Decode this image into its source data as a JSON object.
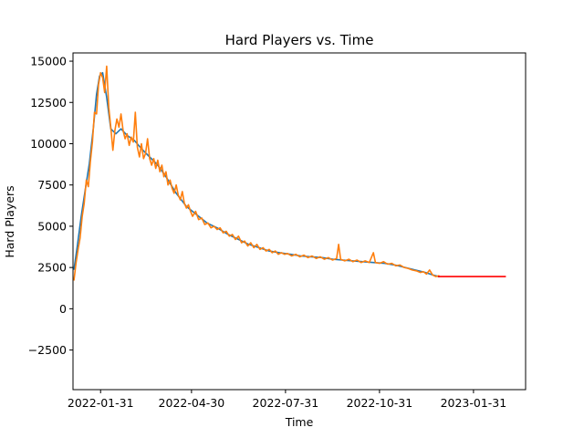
{
  "chart_data": {
    "type": "line",
    "title": "Hard Players vs. Time",
    "xlabel": "Time",
    "ylabel": "Hard Players",
    "x_axis_type": "date",
    "xlim": [
      "2022-01-04",
      "2023-03-23"
    ],
    "ylim": [
      -4900,
      15500
    ],
    "x_ticks": [
      "2022-01-31",
      "2022-04-30",
      "2022-07-31",
      "2022-10-31",
      "2023-01-31"
    ],
    "y_ticks": [
      -2500,
      0,
      2500,
      5000,
      7500,
      10000,
      12500,
      15000
    ],
    "y_tick_labels": [
      "−2500",
      "0",
      "2500",
      "5000",
      "7500",
      "10000",
      "12500",
      "15000"
    ],
    "grid": false,
    "legend": "none",
    "series": [
      {
        "color": "#1f77b4",
        "points": [
          [
            "2022-01-05",
            2400
          ],
          [
            "2022-01-08",
            3700
          ],
          [
            "2022-01-12",
            5600
          ],
          [
            "2022-01-16",
            7200
          ],
          [
            "2022-01-20",
            8800
          ],
          [
            "2022-01-24",
            11000
          ],
          [
            "2022-01-27",
            13000
          ],
          [
            "2022-01-30",
            14100
          ],
          [
            "2022-02-02",
            14300
          ],
          [
            "2022-02-06",
            12800
          ],
          [
            "2022-02-10",
            10900
          ],
          [
            "2022-02-15",
            10600
          ],
          [
            "2022-02-20",
            10900
          ],
          [
            "2022-02-26",
            10500
          ],
          [
            "2022-03-05",
            10200
          ],
          [
            "2022-03-12",
            9700
          ],
          [
            "2022-03-20",
            9200
          ],
          [
            "2022-03-28",
            8700
          ],
          [
            "2022-04-05",
            8000
          ],
          [
            "2022-04-15",
            7000
          ],
          [
            "2022-04-25",
            6200
          ],
          [
            "2022-05-05",
            5700
          ],
          [
            "2022-05-15",
            5200
          ],
          [
            "2022-05-25",
            4900
          ],
          [
            "2022-06-05",
            4500
          ],
          [
            "2022-06-15",
            4200
          ],
          [
            "2022-06-25",
            3900
          ],
          [
            "2022-07-05",
            3700
          ],
          [
            "2022-07-15",
            3500
          ],
          [
            "2022-07-25",
            3400
          ],
          [
            "2022-08-05",
            3300
          ],
          [
            "2022-08-15",
            3200
          ],
          [
            "2022-08-25",
            3150
          ],
          [
            "2022-09-05",
            3100
          ],
          [
            "2022-09-15",
            3000
          ],
          [
            "2022-09-25",
            2950
          ],
          [
            "2022-10-05",
            2900
          ],
          [
            "2022-10-15",
            2850
          ],
          [
            "2022-10-25",
            2800
          ],
          [
            "2022-11-05",
            2750
          ],
          [
            "2022-11-15",
            2650
          ],
          [
            "2022-11-25",
            2500
          ],
          [
            "2022-12-05",
            2350
          ],
          [
            "2022-12-15",
            2200
          ],
          [
            "2022-12-22",
            2050
          ],
          [
            "2022-12-28",
            1950
          ]
        ]
      },
      {
        "color": "#ff7f0e",
        "points": [
          [
            "2022-01-05",
            1750
          ],
          [
            "2022-01-07",
            2800
          ],
          [
            "2022-01-09",
            3600
          ],
          [
            "2022-01-11",
            4300
          ],
          [
            "2022-01-13",
            5600
          ],
          [
            "2022-01-15",
            6400
          ],
          [
            "2022-01-17",
            7800
          ],
          [
            "2022-01-19",
            7400
          ],
          [
            "2022-01-21",
            8900
          ],
          [
            "2022-01-23",
            10100
          ],
          [
            "2022-01-25",
            11900
          ],
          [
            "2022-01-27",
            11800
          ],
          [
            "2022-01-29",
            13600
          ],
          [
            "2022-01-31",
            14300
          ],
          [
            "2022-02-02",
            14000
          ],
          [
            "2022-02-04",
            13100
          ],
          [
            "2022-02-06",
            14700
          ],
          [
            "2022-02-08",
            12200
          ],
          [
            "2022-02-10",
            11000
          ],
          [
            "2022-02-12",
            9600
          ],
          [
            "2022-02-14",
            10800
          ],
          [
            "2022-02-16",
            11500
          ],
          [
            "2022-02-18",
            11000
          ],
          [
            "2022-02-20",
            11800
          ],
          [
            "2022-02-22",
            10800
          ],
          [
            "2022-02-24",
            10300
          ],
          [
            "2022-02-26",
            10600
          ],
          [
            "2022-02-28",
            9900
          ],
          [
            "2022-03-02",
            10400
          ],
          [
            "2022-03-04",
            10100
          ],
          [
            "2022-03-06",
            11900
          ],
          [
            "2022-03-08",
            9800
          ],
          [
            "2022-03-10",
            9200
          ],
          [
            "2022-03-12",
            10000
          ],
          [
            "2022-03-14",
            9100
          ],
          [
            "2022-03-16",
            9400
          ],
          [
            "2022-03-18",
            10300
          ],
          [
            "2022-03-20",
            9100
          ],
          [
            "2022-03-22",
            8700
          ],
          [
            "2022-03-24",
            9100
          ],
          [
            "2022-03-26",
            8500
          ],
          [
            "2022-03-28",
            9000
          ],
          [
            "2022-03-30",
            8300
          ],
          [
            "2022-04-01",
            8700
          ],
          [
            "2022-04-03",
            8000
          ],
          [
            "2022-04-05",
            8300
          ],
          [
            "2022-04-07",
            7500
          ],
          [
            "2022-04-09",
            7800
          ],
          [
            "2022-04-11",
            7300
          ],
          [
            "2022-04-13",
            7000
          ],
          [
            "2022-04-15",
            7500
          ],
          [
            "2022-04-17",
            6900
          ],
          [
            "2022-04-19",
            6600
          ],
          [
            "2022-04-21",
            7100
          ],
          [
            "2022-04-23",
            6400
          ],
          [
            "2022-04-25",
            6100
          ],
          [
            "2022-04-27",
            6300
          ],
          [
            "2022-04-29",
            5900
          ],
          [
            "2022-05-01",
            5600
          ],
          [
            "2022-05-04",
            5900
          ],
          [
            "2022-05-07",
            5400
          ],
          [
            "2022-05-10",
            5500
          ],
          [
            "2022-05-13",
            5100
          ],
          [
            "2022-05-16",
            5200
          ],
          [
            "2022-05-19",
            4900
          ],
          [
            "2022-05-22",
            5000
          ],
          [
            "2022-05-25",
            4800
          ],
          [
            "2022-05-28",
            4900
          ],
          [
            "2022-05-31",
            4600
          ],
          [
            "2022-06-03",
            4700
          ],
          [
            "2022-06-06",
            4400
          ],
          [
            "2022-06-09",
            4500
          ],
          [
            "2022-06-12",
            4200
          ],
          [
            "2022-06-15",
            4400
          ],
          [
            "2022-06-18",
            4000
          ],
          [
            "2022-06-21",
            4100
          ],
          [
            "2022-06-24",
            3800
          ],
          [
            "2022-06-27",
            4000
          ],
          [
            "2022-06-30",
            3700
          ],
          [
            "2022-07-03",
            3900
          ],
          [
            "2022-07-06",
            3600
          ],
          [
            "2022-07-09",
            3700
          ],
          [
            "2022-07-12",
            3500
          ],
          [
            "2022-07-15",
            3600
          ],
          [
            "2022-07-18",
            3400
          ],
          [
            "2022-07-21",
            3500
          ],
          [
            "2022-07-24",
            3300
          ],
          [
            "2022-07-27",
            3400
          ],
          [
            "2022-07-30",
            3300
          ],
          [
            "2022-08-02",
            3350
          ],
          [
            "2022-08-06",
            3200
          ],
          [
            "2022-08-10",
            3300
          ],
          [
            "2022-08-14",
            3150
          ],
          [
            "2022-08-18",
            3250
          ],
          [
            "2022-08-22",
            3100
          ],
          [
            "2022-08-26",
            3200
          ],
          [
            "2022-08-30",
            3050
          ],
          [
            "2022-09-03",
            3150
          ],
          [
            "2022-09-07",
            3000
          ],
          [
            "2022-09-11",
            3100
          ],
          [
            "2022-09-15",
            2950
          ],
          [
            "2022-09-19",
            3050
          ],
          [
            "2022-09-21",
            3900
          ],
          [
            "2022-09-23",
            3000
          ],
          [
            "2022-09-27",
            2900
          ],
          [
            "2022-10-01",
            3000
          ],
          [
            "2022-10-05",
            2850
          ],
          [
            "2022-10-09",
            2950
          ],
          [
            "2022-10-13",
            2800
          ],
          [
            "2022-10-17",
            2900
          ],
          [
            "2022-10-21",
            2800
          ],
          [
            "2022-10-25",
            3400
          ],
          [
            "2022-10-27",
            2800
          ],
          [
            "2022-10-31",
            2750
          ],
          [
            "2022-11-04",
            2850
          ],
          [
            "2022-11-08",
            2700
          ],
          [
            "2022-11-12",
            2750
          ],
          [
            "2022-11-16",
            2600
          ],
          [
            "2022-11-20",
            2650
          ],
          [
            "2022-11-24",
            2500
          ],
          [
            "2022-11-28",
            2450
          ],
          [
            "2022-12-02",
            2350
          ],
          [
            "2022-12-06",
            2300
          ],
          [
            "2022-12-10",
            2200
          ],
          [
            "2022-12-13",
            2250
          ],
          [
            "2022-12-16",
            2100
          ],
          [
            "2022-12-19",
            2350
          ],
          [
            "2022-12-22",
            2050
          ],
          [
            "2022-12-25",
            1950
          ],
          [
            "2022-12-28",
            2000
          ]
        ]
      },
      {
        "color": "#ff0000",
        "points": [
          [
            "2022-12-28",
            1950
          ],
          [
            "2023-03-03",
            1950
          ]
        ]
      }
    ]
  }
}
